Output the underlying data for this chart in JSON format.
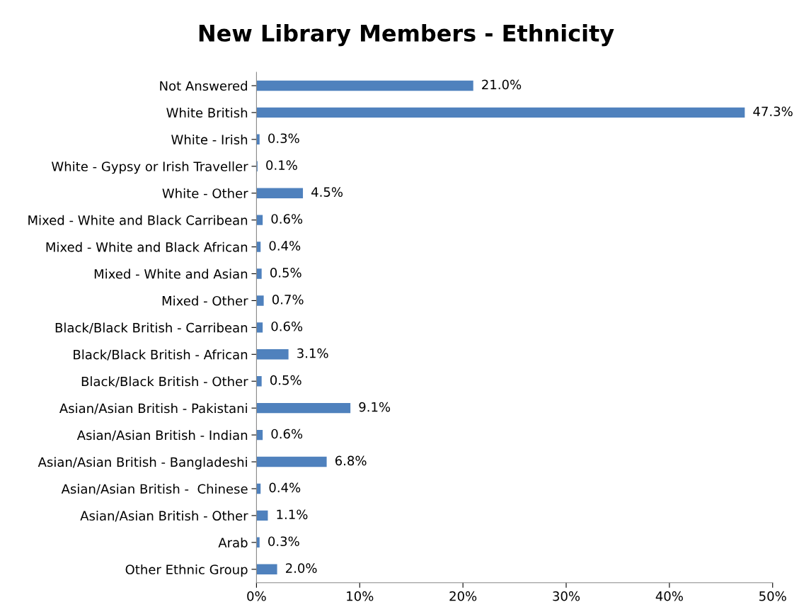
{
  "chart_data": {
    "type": "bar",
    "orientation": "horizontal",
    "title": "New Library Members - Ethnicity",
    "categories": [
      "Not Answered",
      "White British",
      "White - Irish",
      "White - Gypsy or Irish Traveller",
      "White - Other",
      "Mixed - White and Black Carribean",
      "Mixed - White and Black African",
      "Mixed - White and Asian",
      "Mixed - Other",
      "Black/Black British - Carribean",
      "Black/Black British - African",
      "Black/Black British - Other",
      "Asian/Asian British - Pakistani",
      "Asian/Asian British - Indian",
      "Asian/Asian British - Bangladeshi",
      "Asian/Asian British -  Chinese",
      "Asian/Asian British - Other",
      "Arab",
      "Other Ethnic Group"
    ],
    "values": [
      21.0,
      47.3,
      0.3,
      0.1,
      4.5,
      0.6,
      0.4,
      0.5,
      0.7,
      0.6,
      3.1,
      0.5,
      9.1,
      0.6,
      6.8,
      0.4,
      1.1,
      0.3,
      2.0
    ],
    "value_labels": [
      "21.0%",
      "47.3%",
      "0.3%",
      "0.1%",
      "4.5%",
      "0.6%",
      "0.4%",
      "0.5%",
      "0.7%",
      "0.6%",
      "3.1%",
      "0.5%",
      "9.1%",
      "0.6%",
      "6.8%",
      "0.4%",
      "1.1%",
      "0.3%",
      "2.0%"
    ],
    "color": "#4f81bd",
    "xlim": [
      0,
      50
    ],
    "xticks": [
      {
        "value": 0,
        "label": "0%"
      },
      {
        "value": 10,
        "label": "10%"
      },
      {
        "value": 20,
        "label": "20%"
      },
      {
        "value": 30,
        "label": "30%"
      },
      {
        "value": 40,
        "label": "40%"
      },
      {
        "value": 50,
        "label": "50%"
      }
    ],
    "grid": false
  }
}
